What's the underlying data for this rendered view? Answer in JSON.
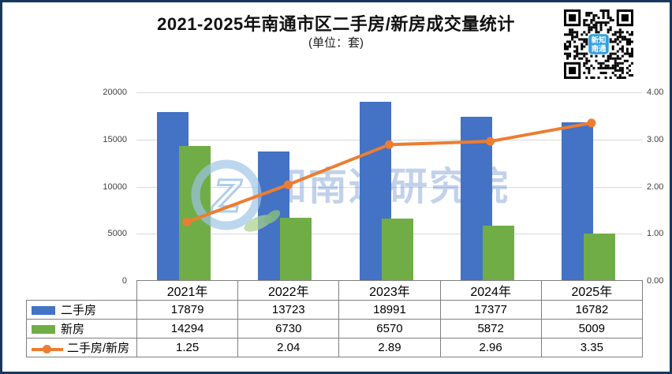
{
  "title": "2021-2025年南通市区二手房/新房成交量统计",
  "subtitle": "(单位：套)",
  "watermark": {
    "text": "知南通研究院",
    "logo_letter": "Z"
  },
  "qr": {
    "center_label_line1": "新知",
    "center_label_line2": "南通"
  },
  "colors": {
    "secondhand": "#4472C4",
    "newhouse": "#70AD47",
    "ratio_line": "#ED7D31",
    "gridline": "#D9D9D9",
    "frame": "#17375E",
    "qr_badge": "#2E9FE0"
  },
  "chart_data": {
    "type": "bar+line-combo",
    "categories": [
      "2021年",
      "2022年",
      "2023年",
      "2024年",
      "2025年"
    ],
    "series": [
      {
        "name": "二手房",
        "type": "bar",
        "axis": "left",
        "color_key": "secondhand",
        "values": [
          17879,
          13723,
          18991,
          17377,
          16782
        ]
      },
      {
        "name": "新房",
        "type": "bar",
        "axis": "left",
        "color_key": "newhouse",
        "values": [
          14294,
          6730,
          6570,
          5872,
          5009
        ]
      },
      {
        "name": "二手房/新房",
        "type": "line",
        "axis": "right",
        "color_key": "ratio_line",
        "values_text": [
          "1.25",
          "2.04",
          "2.89",
          "2.96",
          "3.35"
        ],
        "values": [
          1.25,
          2.04,
          2.89,
          2.96,
          3.35
        ]
      }
    ],
    "left_axis": {
      "min": 0,
      "max": 20000,
      "tick_labels": [
        "0",
        "5000",
        "10000",
        "15000",
        "20000"
      ],
      "tick_values": [
        0,
        5000,
        10000,
        15000,
        20000
      ]
    },
    "right_axis": {
      "min": 0,
      "max": 4,
      "tick_labels": [
        "0.00",
        "1.00",
        "2.00",
        "3.00",
        "4.00"
      ],
      "tick_values": [
        0,
        1,
        2,
        3,
        4
      ]
    },
    "grid": true,
    "legend_position": "data-table-left"
  }
}
